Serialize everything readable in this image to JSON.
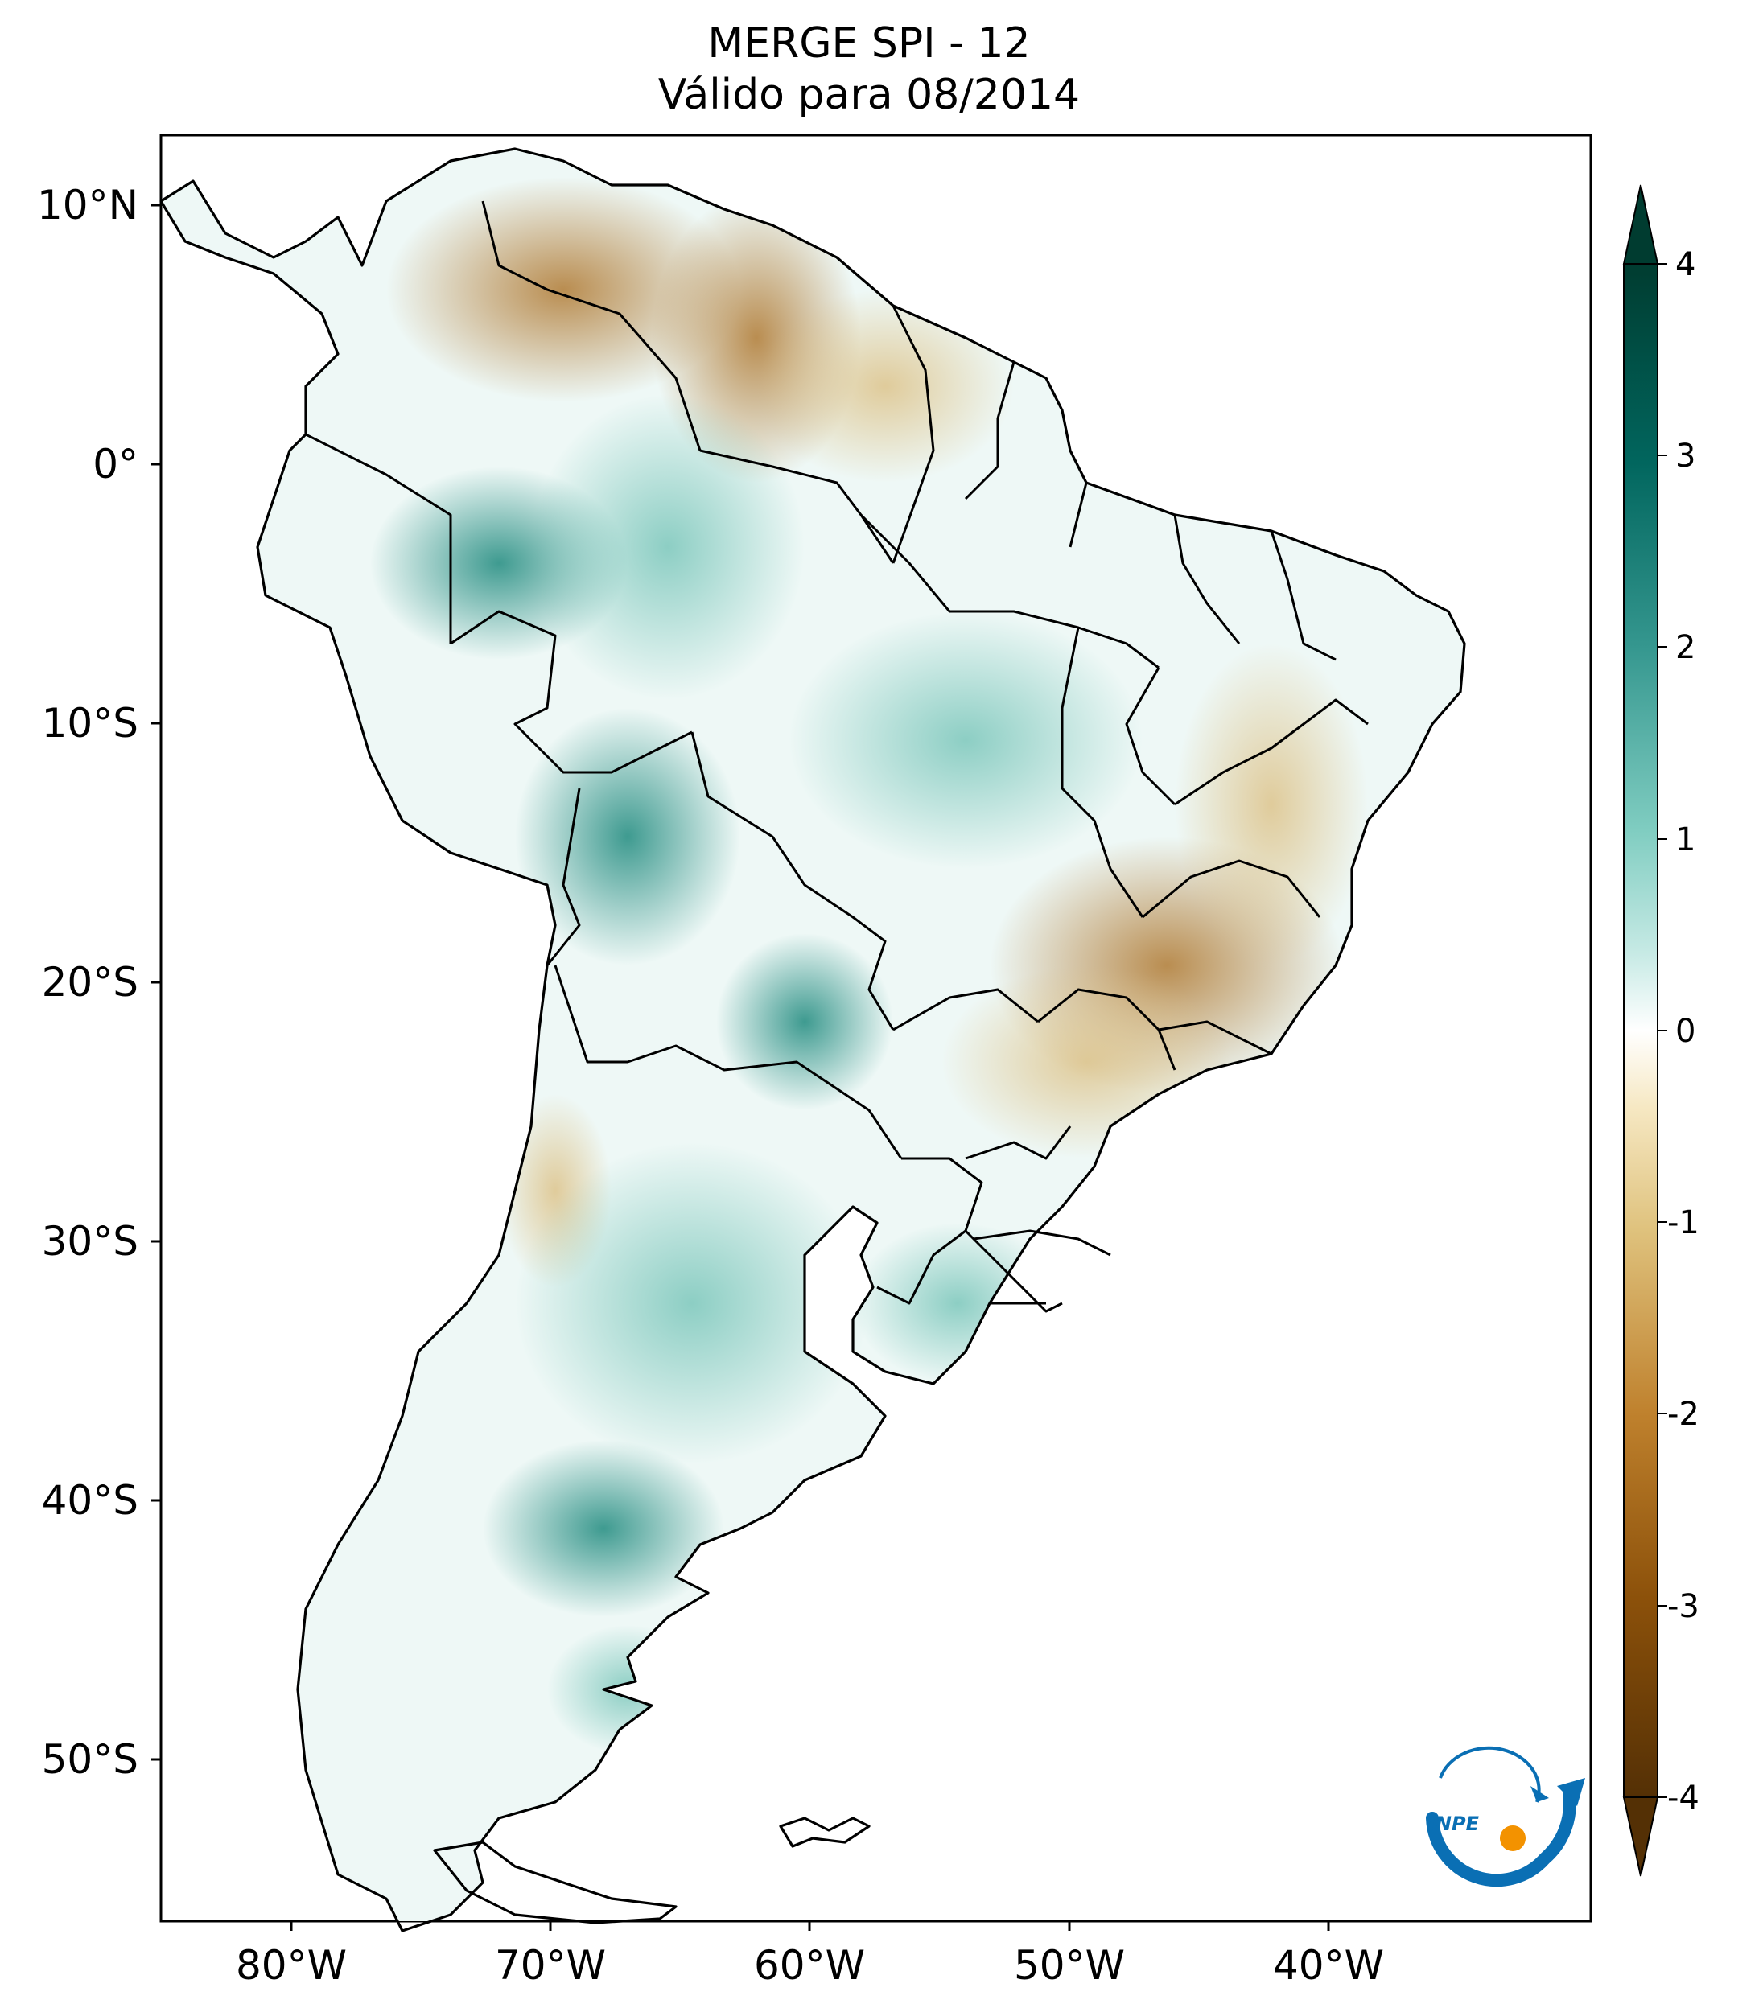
{
  "title": {
    "line1": "MERGE   SPI - 12",
    "line2": "Válido para 08/2014"
  },
  "map": {
    "lat_ticks": [
      "10°N",
      "0°",
      "10°S",
      "20°S",
      "30°S",
      "40°S",
      "50°S"
    ],
    "lon_ticks": [
      "80°W",
      "70°W",
      "60°W",
      "50°W",
      "40°W"
    ],
    "extent": {
      "lon_min": -85,
      "lon_max": -30,
      "lat_min": -56,
      "lat_max": 13
    }
  },
  "colorbar": {
    "ticks": [
      "4",
      "3",
      "2",
      "1",
      "0",
      "-1",
      "-2",
      "-3",
      "-4"
    ],
    "colors": {
      "max": "#003c30",
      "p3": "#01665e",
      "p2": "#35978f",
      "p1": "#c7eae5",
      "zero": "#ffffff",
      "m1": "#f6e8c3",
      "m2": "#dfc27d",
      "m3": "#a6611a",
      "min": "#543005"
    }
  },
  "logo": {
    "text": "INPE",
    "colors": {
      "blue": "#0a6fb4",
      "orange": "#f39200"
    }
  }
}
